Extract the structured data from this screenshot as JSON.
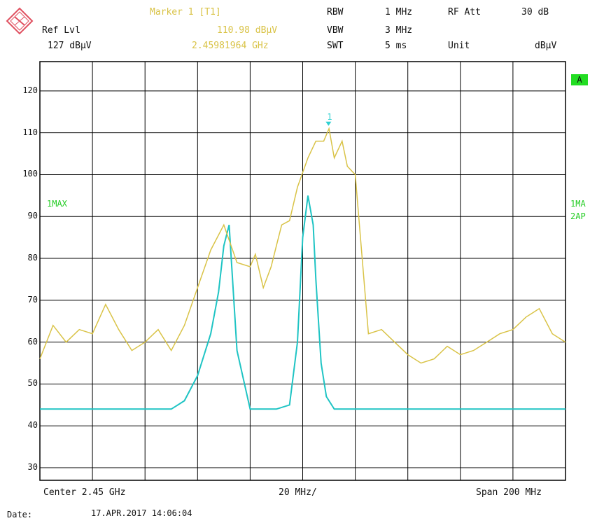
{
  "header": {
    "marker_label": "Marker 1 [T1]",
    "marker_level": "110.98 dBµV",
    "marker_freq": "2.45981964 GHz",
    "ref_lvl_label": "Ref Lvl",
    "ref_lvl_value": "127 dBµV",
    "rbw_label": "RBW",
    "rbw_value": "1 MHz",
    "vbw_label": "VBW",
    "vbw_value": "3 MHz",
    "swt_label": "SWT",
    "swt_value": "5 ms",
    "rf_att_label": "RF Att",
    "rf_att_value": "30 dB",
    "unit_label": "Unit",
    "unit_value": "dBµV"
  },
  "side_labels": {
    "left_trace": "1MAX",
    "right_trace_1": "1MA",
    "right_trace_2": "2AP",
    "badge": "A",
    "marker_number": "1"
  },
  "footer": {
    "center": "Center 2.45 GHz",
    "div": "20 MHz/",
    "span": "Span 200 MHz",
    "date_label": "Date:",
    "date_value": "17.APR.2017  14:06:04"
  },
  "colors": {
    "trace_max": "#d9c347",
    "trace_avg": "#1fc4c4",
    "grid": "#000000",
    "marker": "#2fd0d0"
  },
  "chart_data": {
    "type": "line",
    "xlabel": "",
    "ylabel": "",
    "x_unit": "GHz",
    "y_unit": "dBµV",
    "xlim": [
      2.35,
      2.55
    ],
    "ylim": [
      27,
      127
    ],
    "yticks": [
      30,
      40,
      50,
      60,
      70,
      80,
      90,
      100,
      110,
      120
    ],
    "grid": true,
    "marker": {
      "x": 2.45981964,
      "y": 110.98
    },
    "series": [
      {
        "name": "1MAX",
        "x": [
          2.35,
          2.355,
          2.36,
          2.365,
          2.37,
          2.375,
          2.38,
          2.385,
          2.39,
          2.395,
          2.4,
          2.405,
          2.41,
          2.415,
          2.42,
          2.425,
          2.43,
          2.432,
          2.435,
          2.438,
          2.44,
          2.442,
          2.445,
          2.448,
          2.452,
          2.455,
          2.458,
          2.46,
          2.462,
          2.465,
          2.467,
          2.47,
          2.475,
          2.48,
          2.485,
          2.49,
          2.495,
          2.5,
          2.505,
          2.51,
          2.515,
          2.52,
          2.525,
          2.53,
          2.535,
          2.54,
          2.545,
          2.55
        ],
        "y": [
          56,
          64,
          60,
          63,
          62,
          69,
          63,
          58,
          60,
          63,
          58,
          64,
          73,
          82,
          88,
          79,
          78,
          81,
          73,
          78,
          83,
          88,
          89,
          97,
          104,
          108,
          108,
          111,
          104,
          108,
          102,
          100,
          62,
          63,
          60,
          57,
          55,
          56,
          59,
          57,
          58,
          60,
          62,
          63,
          66,
          68,
          62,
          60
        ]
      },
      {
        "name": "2AP",
        "x": [
          2.35,
          2.36,
          2.37,
          2.38,
          2.39,
          2.4,
          2.405,
          2.41,
          2.415,
          2.418,
          2.42,
          2.422,
          2.425,
          2.43,
          2.44,
          2.445,
          2.448,
          2.45,
          2.452,
          2.454,
          2.455,
          2.457,
          2.459,
          2.462,
          2.465,
          2.47,
          2.48,
          2.49,
          2.5,
          2.51,
          2.52,
          2.53,
          2.54,
          2.55
        ],
        "y": [
          44,
          44,
          44,
          44,
          44,
          44,
          46,
          52,
          62,
          72,
          83,
          88,
          58,
          44,
          44,
          45,
          60,
          85,
          95,
          88,
          75,
          55,
          47,
          44,
          44,
          44,
          44,
          44,
          44,
          44,
          44,
          44,
          44,
          44
        ]
      }
    ]
  }
}
